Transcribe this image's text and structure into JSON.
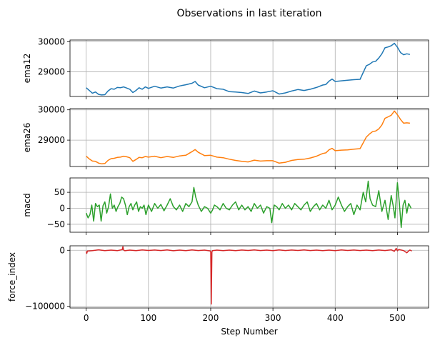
{
  "chart_data": {
    "type": "line",
    "title": "Observations in last iteration",
    "xlabel": "Step Number",
    "xlim": [
      -26,
      550
    ],
    "xticks": [
      0,
      100,
      200,
      300,
      400,
      500
    ],
    "grid": true,
    "panels": [
      {
        "name": "ema12",
        "ylabel": "ema12",
        "color": "#1f77b4",
        "ylim": [
          28180,
          30060
        ],
        "yticks": [
          29000,
          30000
        ],
        "x": [
          0,
          5,
          10,
          15,
          20,
          25,
          30,
          35,
          40,
          45,
          50,
          55,
          60,
          65,
          70,
          75,
          80,
          85,
          90,
          95,
          100,
          110,
          120,
          130,
          140,
          150,
          160,
          170,
          175,
          180,
          190,
          200,
          210,
          220,
          230,
          240,
          250,
          260,
          270,
          280,
          290,
          300,
          310,
          320,
          330,
          340,
          350,
          360,
          370,
          380,
          385,
          390,
          395,
          400,
          410,
          420,
          430,
          440,
          450,
          455,
          460,
          465,
          470,
          475,
          480,
          485,
          490,
          495,
          500,
          505,
          510,
          515,
          520
        ],
        "values": [
          28470,
          28380,
          28290,
          28330,
          28250,
          28230,
          28240,
          28360,
          28440,
          28420,
          28480,
          28470,
          28500,
          28460,
          28420,
          28310,
          28380,
          28470,
          28420,
          28500,
          28450,
          28520,
          28460,
          28500,
          28460,
          28530,
          28570,
          28620,
          28680,
          28560,
          28470,
          28520,
          28440,
          28420,
          28340,
          28330,
          28310,
          28280,
          28360,
          28300,
          28330,
          28370,
          28260,
          28300,
          28360,
          28410,
          28380,
          28420,
          28480,
          28560,
          28580,
          28690,
          28760,
          28680,
          28700,
          28720,
          28740,
          28750,
          29200,
          29250,
          29330,
          29350,
          29460,
          29600,
          29800,
          29830,
          29870,
          29950,
          29820,
          29640,
          29570,
          29600,
          29580
        ]
      },
      {
        "name": "ema26",
        "ylabel": "ema26",
        "color": "#ff7f0e",
        "ylim": [
          28130,
          30040
        ],
        "yticks": [
          29000,
          30000
        ],
        "x": [
          0,
          5,
          10,
          15,
          20,
          25,
          30,
          35,
          40,
          45,
          50,
          55,
          60,
          65,
          70,
          75,
          80,
          85,
          90,
          95,
          100,
          110,
          120,
          130,
          140,
          150,
          160,
          170,
          175,
          180,
          190,
          200,
          210,
          220,
          230,
          240,
          250,
          260,
          270,
          280,
          290,
          300,
          310,
          320,
          330,
          340,
          350,
          360,
          370,
          380,
          385,
          390,
          395,
          400,
          410,
          420,
          430,
          440,
          450,
          455,
          460,
          465,
          470,
          475,
          480,
          485,
          490,
          495,
          500,
          505,
          510,
          515,
          520
        ],
        "values": [
          28470,
          28380,
          28310,
          28300,
          28240,
          28220,
          28230,
          28330,
          28390,
          28400,
          28430,
          28440,
          28470,
          28450,
          28420,
          28300,
          28360,
          28430,
          28420,
          28460,
          28440,
          28470,
          28420,
          28460,
          28430,
          28480,
          28500,
          28620,
          28690,
          28600,
          28490,
          28500,
          28440,
          28420,
          28370,
          28330,
          28300,
          28280,
          28340,
          28310,
          28320,
          28320,
          28240,
          28270,
          28330,
          28360,
          28370,
          28410,
          28470,
          28560,
          28580,
          28680,
          28730,
          28650,
          28670,
          28680,
          28700,
          28720,
          29100,
          29200,
          29280,
          29300,
          29370,
          29500,
          29720,
          29770,
          29820,
          29960,
          29840,
          29680,
          29560,
          29570,
          29560
        ]
      },
      {
        "name": "macd",
        "ylabel": "macd",
        "color": "#2ca02c",
        "ylim": [
          -75,
          95
        ],
        "yticks": [
          -50,
          0,
          50
        ],
        "x": [
          0,
          3,
          6,
          9,
          12,
          15,
          18,
          21,
          24,
          27,
          30,
          33,
          36,
          39,
          42,
          45,
          48,
          51,
          54,
          57,
          60,
          63,
          66,
          69,
          72,
          75,
          78,
          81,
          84,
          87,
          90,
          93,
          96,
          100,
          105,
          110,
          115,
          120,
          125,
          130,
          135,
          140,
          145,
          150,
          155,
          160,
          165,
          170,
          173,
          176,
          180,
          185,
          190,
          195,
          200,
          203,
          206,
          210,
          215,
          220,
          225,
          230,
          235,
          240,
          245,
          250,
          255,
          260,
          265,
          270,
          275,
          280,
          285,
          290,
          295,
          298,
          302,
          306,
          310,
          315,
          320,
          325,
          330,
          335,
          340,
          345,
          350,
          355,
          360,
          365,
          370,
          375,
          380,
          385,
          390,
          395,
          400,
          405,
          410,
          415,
          420,
          425,
          430,
          435,
          440,
          445,
          449,
          453,
          456,
          460,
          465,
          470,
          475,
          480,
          485,
          490,
          493,
          496,
          500,
          503,
          506,
          509,
          512,
          515,
          518,
          522
        ],
        "values": [
          -15,
          -30,
          -20,
          10,
          -40,
          15,
          5,
          10,
          -40,
          8,
          20,
          -15,
          5,
          45,
          0,
          10,
          -10,
          5,
          15,
          35,
          30,
          10,
          -20,
          5,
          15,
          -5,
          10,
          20,
          -10,
          5,
          0,
          10,
          -20,
          10,
          -10,
          15,
          0,
          12,
          -8,
          10,
          30,
          5,
          -5,
          10,
          -10,
          15,
          5,
          20,
          65,
          35,
          10,
          -10,
          5,
          0,
          -15,
          -5,
          10,
          5,
          -5,
          15,
          0,
          -5,
          10,
          20,
          -5,
          10,
          -5,
          5,
          -10,
          15,
          0,
          10,
          -15,
          5,
          0,
          -45,
          10,
          5,
          -5,
          15,
          0,
          10,
          -5,
          15,
          5,
          -5,
          10,
          20,
          -10,
          5,
          15,
          -5,
          10,
          0,
          25,
          -5,
          10,
          35,
          10,
          -10,
          5,
          15,
          -20,
          10,
          -5,
          50,
          20,
          85,
          30,
          10,
          5,
          55,
          -10,
          25,
          -35,
          40,
          10,
          -30,
          80,
          20,
          -60,
          10,
          25,
          -15,
          15,
          0
        ]
      },
      {
        "name": "force_index",
        "ylabel": "force_index",
        "color": "#d62728",
        "ylim": [
          -103000,
          8000
        ],
        "yticks": [
          -100000,
          0
        ],
        "x": [
          0,
          1,
          2,
          10,
          20,
          30,
          40,
          50,
          55,
          58,
          59,
          60,
          62,
          70,
          80,
          90,
          100,
          110,
          120,
          130,
          140,
          150,
          160,
          170,
          180,
          190,
          199,
          200,
          201,
          202,
          203,
          210,
          220,
          230,
          240,
          250,
          260,
          270,
          280,
          290,
          300,
          310,
          320,
          330,
          340,
          350,
          360,
          370,
          380,
          390,
          400,
          410,
          420,
          430,
          440,
          450,
          460,
          470,
          480,
          490,
          495,
          498,
          500,
          502,
          510,
          515,
          518,
          520,
          523
        ],
        "values": [
          -2000,
          -5500,
          -1500,
          -500,
          800,
          -600,
          400,
          -700,
          500,
          1200,
          6500,
          500,
          -800,
          400,
          -600,
          700,
          -300,
          500,
          -400,
          600,
          -800,
          300,
          -500,
          700,
          -400,
          300,
          -1000,
          -3000,
          -96000,
          -2500,
          -500,
          400,
          -600,
          300,
          -700,
          500,
          -300,
          600,
          -400,
          300,
          -500,
          700,
          -400,
          500,
          -300,
          600,
          -400,
          300,
          -500,
          400,
          -700,
          600,
          -300,
          500,
          -400,
          300,
          -600,
          500,
          -400,
          900,
          -1800,
          3500,
          -900,
          1500,
          -600,
          -4500,
          -1200,
          500,
          -1500
        ]
      }
    ]
  }
}
